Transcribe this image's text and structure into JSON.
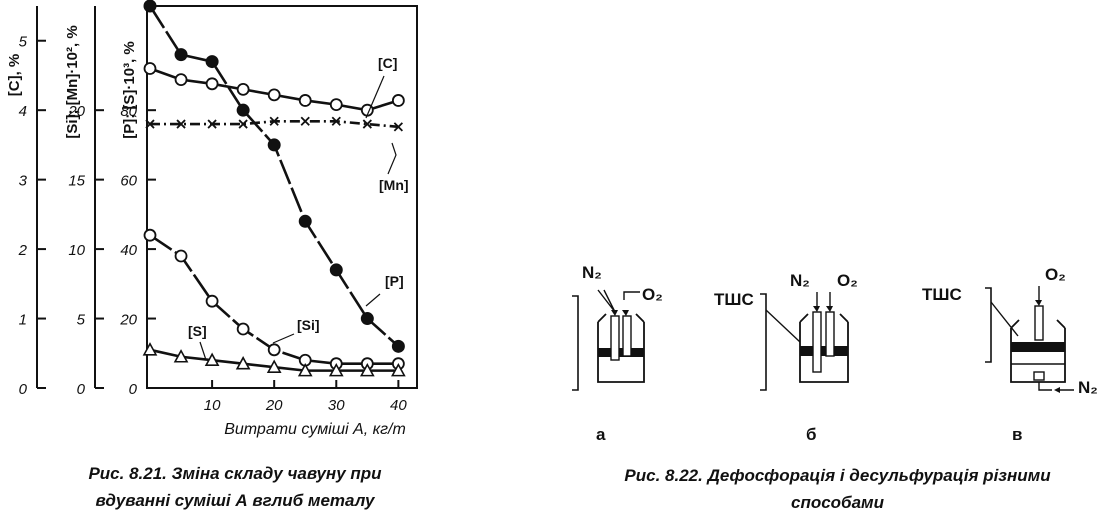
{
  "figure1": {
    "caption_line1": "Рис. 8.21. Зміна складу чавуну при",
    "caption_line2": "вдуванні суміші А вглиб металу",
    "xlabel": "Витрати суміші А, кг/т",
    "axis_labels": {
      "c": "[C], %",
      "si_mn": "[Si]; [Mn]·10², %",
      "p_s": "[P]; [S]·10³, %"
    },
    "tick_labels": {
      "c": [
        "0",
        "1",
        "2",
        "3",
        "4",
        "5"
      ],
      "si_mn": [
        "0",
        "5",
        "10",
        "15",
        "20"
      ],
      "p_s": [
        "0",
        "20",
        "40",
        "60",
        "80"
      ],
      "x": [
        "10",
        "20",
        "30",
        "40"
      ]
    },
    "series_labels": {
      "c": "[C]",
      "mn": "[Mn]",
      "p": "[P]",
      "si": "[Si]",
      "s": "[S]"
    }
  },
  "chart_data": {
    "type": "line",
    "xlabel": "Витрати суміші А, кг/т",
    "xlim": [
      0,
      43
    ],
    "ylim": [
      0,
      100
    ],
    "grid": false,
    "series": [
      {
        "name": "[C]",
        "marker": "filled-circle",
        "axis": "C, %",
        "x": [
          0,
          5,
          10,
          15,
          20,
          25,
          30,
          35,
          40
        ],
        "y": [
          5.5,
          4.8,
          4.7,
          4.0,
          3.5,
          2.4,
          1.7,
          1.0,
          0.6
        ]
      },
      {
        "name": "[Mn]",
        "marker": "cross",
        "axis": "Mn·10², %",
        "x": [
          0,
          5,
          10,
          15,
          20,
          25,
          30,
          35,
          40
        ],
        "y": [
          19.0,
          19.0,
          19.0,
          19.0,
          19.2,
          19.2,
          19.2,
          19.0,
          18.8
        ]
      },
      {
        "name": "[P]",
        "marker": "open-circle",
        "axis": "P, %",
        "x": [
          0,
          5,
          10,
          15,
          20,
          25,
          30,
          35,
          40
        ],
        "y": [
          0.44,
          0.38,
          0.25,
          0.17,
          0.11,
          0.08,
          0.07,
          0.07,
          0.07
        ]
      },
      {
        "name": "[Si]",
        "marker": "open-circle",
        "axis": "Si, %",
        "x": [
          0,
          5,
          10,
          15,
          20,
          25,
          30,
          35,
          40
        ],
        "y": [
          23.0,
          22.2,
          21.9,
          21.5,
          21.1,
          20.7,
          20.4,
          20.0,
          20.7
        ]
      },
      {
        "name": "[S]",
        "marker": "open-triangle",
        "axis": "S·10³, %",
        "x": [
          0,
          5,
          10,
          15,
          20,
          25,
          30,
          35,
          40
        ],
        "y": [
          11,
          9,
          8,
          7,
          6,
          5,
          5,
          5,
          5
        ]
      }
    ]
  },
  "figure2": {
    "caption_line1": "Рис. 8.22. Дефосфорація і десульфурація різними",
    "caption_line2": "способами",
    "panels": [
      {
        "letter": "а",
        "labels": [
          "N₂",
          "O₂"
        ]
      },
      {
        "letter": "б",
        "labels": [
          "ТШС",
          "N₂",
          "O₂"
        ]
      },
      {
        "letter": "в",
        "labels": [
          "ТШС",
          "O₂",
          "N₂"
        ]
      }
    ]
  }
}
